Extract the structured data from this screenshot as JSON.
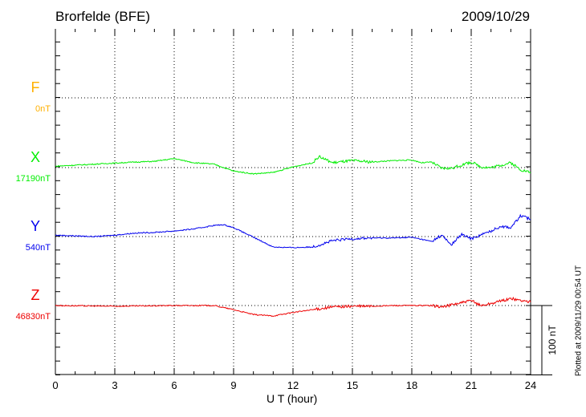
{
  "header": {
    "station": "Brorfelde (BFE)",
    "date": "2009/10/29"
  },
  "footer": {
    "plotted": "Plotted at 2009/11/29 00:54 UT"
  },
  "chart_data": {
    "type": "line",
    "title": "Brorfelde (BFE)",
    "xlabel": "U T (hour)",
    "xlim": [
      0,
      24
    ],
    "xticks": [
      "0",
      "3",
      "6",
      "9",
      "12",
      "15",
      "18",
      "21",
      "24"
    ],
    "scale_bar_label": "100 nT",
    "scale_bar_nT": 100,
    "series": [
      {
        "name": "F",
        "baseline_label": "0nT",
        "color": "#ffb000",
        "points": []
      },
      {
        "name": "X",
        "baseline_label": "17190nT",
        "color": "#00ee00",
        "points": [
          [
            0,
            2
          ],
          [
            2,
            5
          ],
          [
            4,
            8
          ],
          [
            5,
            9
          ],
          [
            6,
            13
          ],
          [
            7,
            7
          ],
          [
            8,
            5
          ],
          [
            9,
            -5
          ],
          [
            10,
            -9
          ],
          [
            11,
            -7
          ],
          [
            12,
            1
          ],
          [
            13,
            7
          ],
          [
            13.3,
            16
          ],
          [
            14,
            7
          ],
          [
            15,
            10
          ],
          [
            16,
            8
          ],
          [
            17,
            10
          ],
          [
            18,
            11
          ],
          [
            18.5,
            7
          ],
          [
            19,
            8
          ],
          [
            19.5,
            -1
          ],
          [
            20,
            -1
          ],
          [
            21,
            8
          ],
          [
            21.5,
            1
          ],
          [
            22,
            0
          ],
          [
            23,
            7
          ],
          [
            23.5,
            -3
          ],
          [
            24,
            -7
          ]
        ]
      },
      {
        "name": "Y",
        "baseline_label": "540nT",
        "color": "#0000ee",
        "points": [
          [
            0,
            2
          ],
          [
            2,
            0
          ],
          [
            3,
            2
          ],
          [
            4,
            5
          ],
          [
            5,
            6
          ],
          [
            6,
            8
          ],
          [
            7,
            11
          ],
          [
            8,
            16
          ],
          [
            8.5,
            17
          ],
          [
            9,
            13
          ],
          [
            10,
            -1
          ],
          [
            11,
            -15
          ],
          [
            12,
            -16
          ],
          [
            13,
            -15
          ],
          [
            14,
            -6
          ],
          [
            15,
            -3
          ],
          [
            16,
            -2
          ],
          [
            17,
            -2
          ],
          [
            18,
            -1
          ],
          [
            19,
            -7
          ],
          [
            19.5,
            2
          ],
          [
            20,
            -12
          ],
          [
            20.5,
            3
          ],
          [
            21,
            -3
          ],
          [
            22,
            8
          ],
          [
            22.5,
            15
          ],
          [
            23,
            13
          ],
          [
            23.5,
            30
          ],
          [
            24,
            25
          ]
        ]
      },
      {
        "name": "Z",
        "baseline_label": "46830nT",
        "color": "#ee0000",
        "points": [
          [
            0,
            0
          ],
          [
            3,
            -1
          ],
          [
            6,
            0
          ],
          [
            8,
            0
          ],
          [
            9,
            -6
          ],
          [
            10,
            -13
          ],
          [
            11,
            -15
          ],
          [
            12,
            -10
          ],
          [
            13,
            -6
          ],
          [
            14,
            -2
          ],
          [
            15,
            -1
          ],
          [
            16,
            -1
          ],
          [
            17,
            0
          ],
          [
            18,
            0
          ],
          [
            19,
            0
          ],
          [
            19.5,
            -2
          ],
          [
            20,
            1
          ],
          [
            21,
            7
          ],
          [
            21.5,
            0
          ],
          [
            22,
            3
          ],
          [
            23,
            10
          ],
          [
            24,
            5
          ]
        ]
      }
    ]
  }
}
